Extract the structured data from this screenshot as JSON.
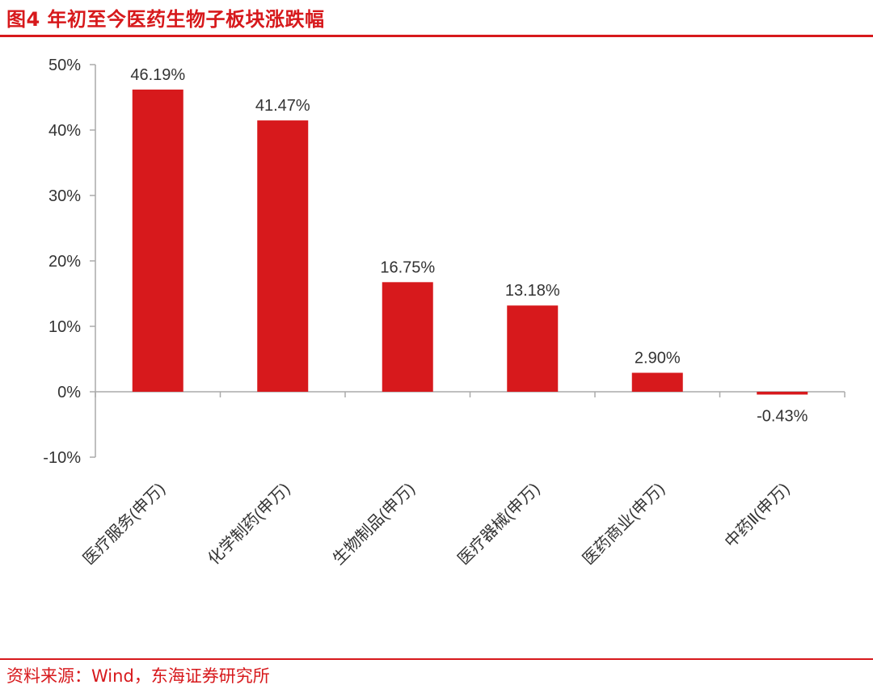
{
  "header": {
    "title": "图4 年初至今医药生物子板块涨跌幅"
  },
  "footer": {
    "source": "资料来源：Wind，东海证券研究所"
  },
  "colors": {
    "accent": "#d7191c",
    "bar": "#d7191c",
    "axis": "#aaaaaa",
    "text": "#333333"
  },
  "chart_data": {
    "type": "bar",
    "title": "",
    "xlabel": "",
    "ylabel": "",
    "categories": [
      "医疗服务(申万)",
      "化学制药(申万)",
      "生物制品(申万)",
      "医疗器械(申万)",
      "医药商业(申万)",
      "中药Ⅱ(申万)"
    ],
    "values": [
      46.19,
      41.47,
      16.75,
      13.18,
      2.9,
      -0.43
    ],
    "value_labels": [
      "46.19%",
      "41.47%",
      "16.75%",
      "13.18%",
      "2.90%",
      "-0.43%"
    ],
    "ylim": [
      -10,
      50
    ],
    "yticks": [
      -10,
      0,
      10,
      20,
      30,
      40,
      50
    ],
    "ytick_labels": [
      "-10%",
      "0%",
      "10%",
      "20%",
      "30%",
      "40%",
      "50%"
    ],
    "grid": false,
    "legend": "none"
  }
}
